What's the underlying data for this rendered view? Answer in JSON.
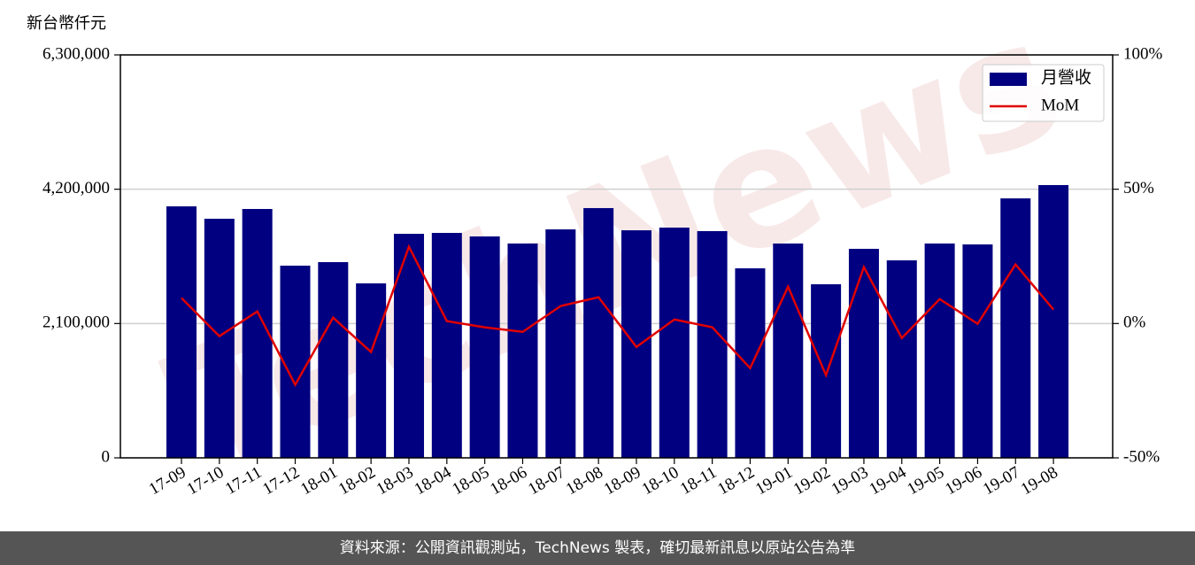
{
  "chart_data": {
    "type": "bar",
    "y_axis_title": "新台幣仟元",
    "watermark": "TechNews",
    "categories": [
      "17-09",
      "17-10",
      "17-11",
      "17-12",
      "18-01",
      "18-02",
      "18-03",
      "18-04",
      "18-05",
      "18-06",
      "18-07",
      "18-08",
      "18-09",
      "18-10",
      "18-11",
      "18-12",
      "19-01",
      "19-02",
      "19-03",
      "19-04",
      "19-05",
      "19-06",
      "19-07",
      "19-08"
    ],
    "series": [
      {
        "name": "月營收",
        "type": "bar",
        "axis": "y",
        "color": "#000080",
        "values": [
          3932000,
          3738000,
          3891000,
          3005000,
          3060000,
          2728000,
          3503000,
          3517000,
          3462000,
          3351000,
          3572000,
          3905000,
          3558000,
          3600000,
          3545000,
          2963000,
          3351000,
          2714000,
          3268000,
          3088000,
          3351000,
          3337000,
          4057000,
          4265000
        ]
      },
      {
        "name": "MoM",
        "type": "line",
        "axis": "y2",
        "color": "#e00000",
        "values": [
          9.5,
          -4.7,
          4.5,
          -22.8,
          2.2,
          -10.6,
          28.6,
          0.9,
          -1.4,
          -3.1,
          6.5,
          9.8,
          -8.7,
          1.5,
          -1.4,
          -16.6,
          13.7,
          -19.2,
          21.0,
          -5.4,
          9.1,
          -0.1,
          22.0,
          5.2
        ]
      }
    ],
    "ylim": [
      0,
      6300000
    ],
    "yticks": [
      0,
      {
        "value": 2100000,
        "label": "2,100,000"
      },
      {
        "value": 4200000,
        "label": "4,200,000"
      },
      {
        "value": 6300000,
        "label": "6,300,000"
      }
    ],
    "y2lim": [
      -50,
      100
    ],
    "y2ticks": [
      {
        "value": -50,
        "label": "-50%"
      },
      {
        "value": 0,
        "label": "0%"
      },
      {
        "value": 50,
        "label": "50%"
      },
      {
        "value": 100,
        "label": "100%"
      }
    ],
    "grid": true,
    "legend": "upper right"
  },
  "footer": "資料來源：公開資訊觀測站，TechNews 製表，確切最新訊息以原站公告為準"
}
